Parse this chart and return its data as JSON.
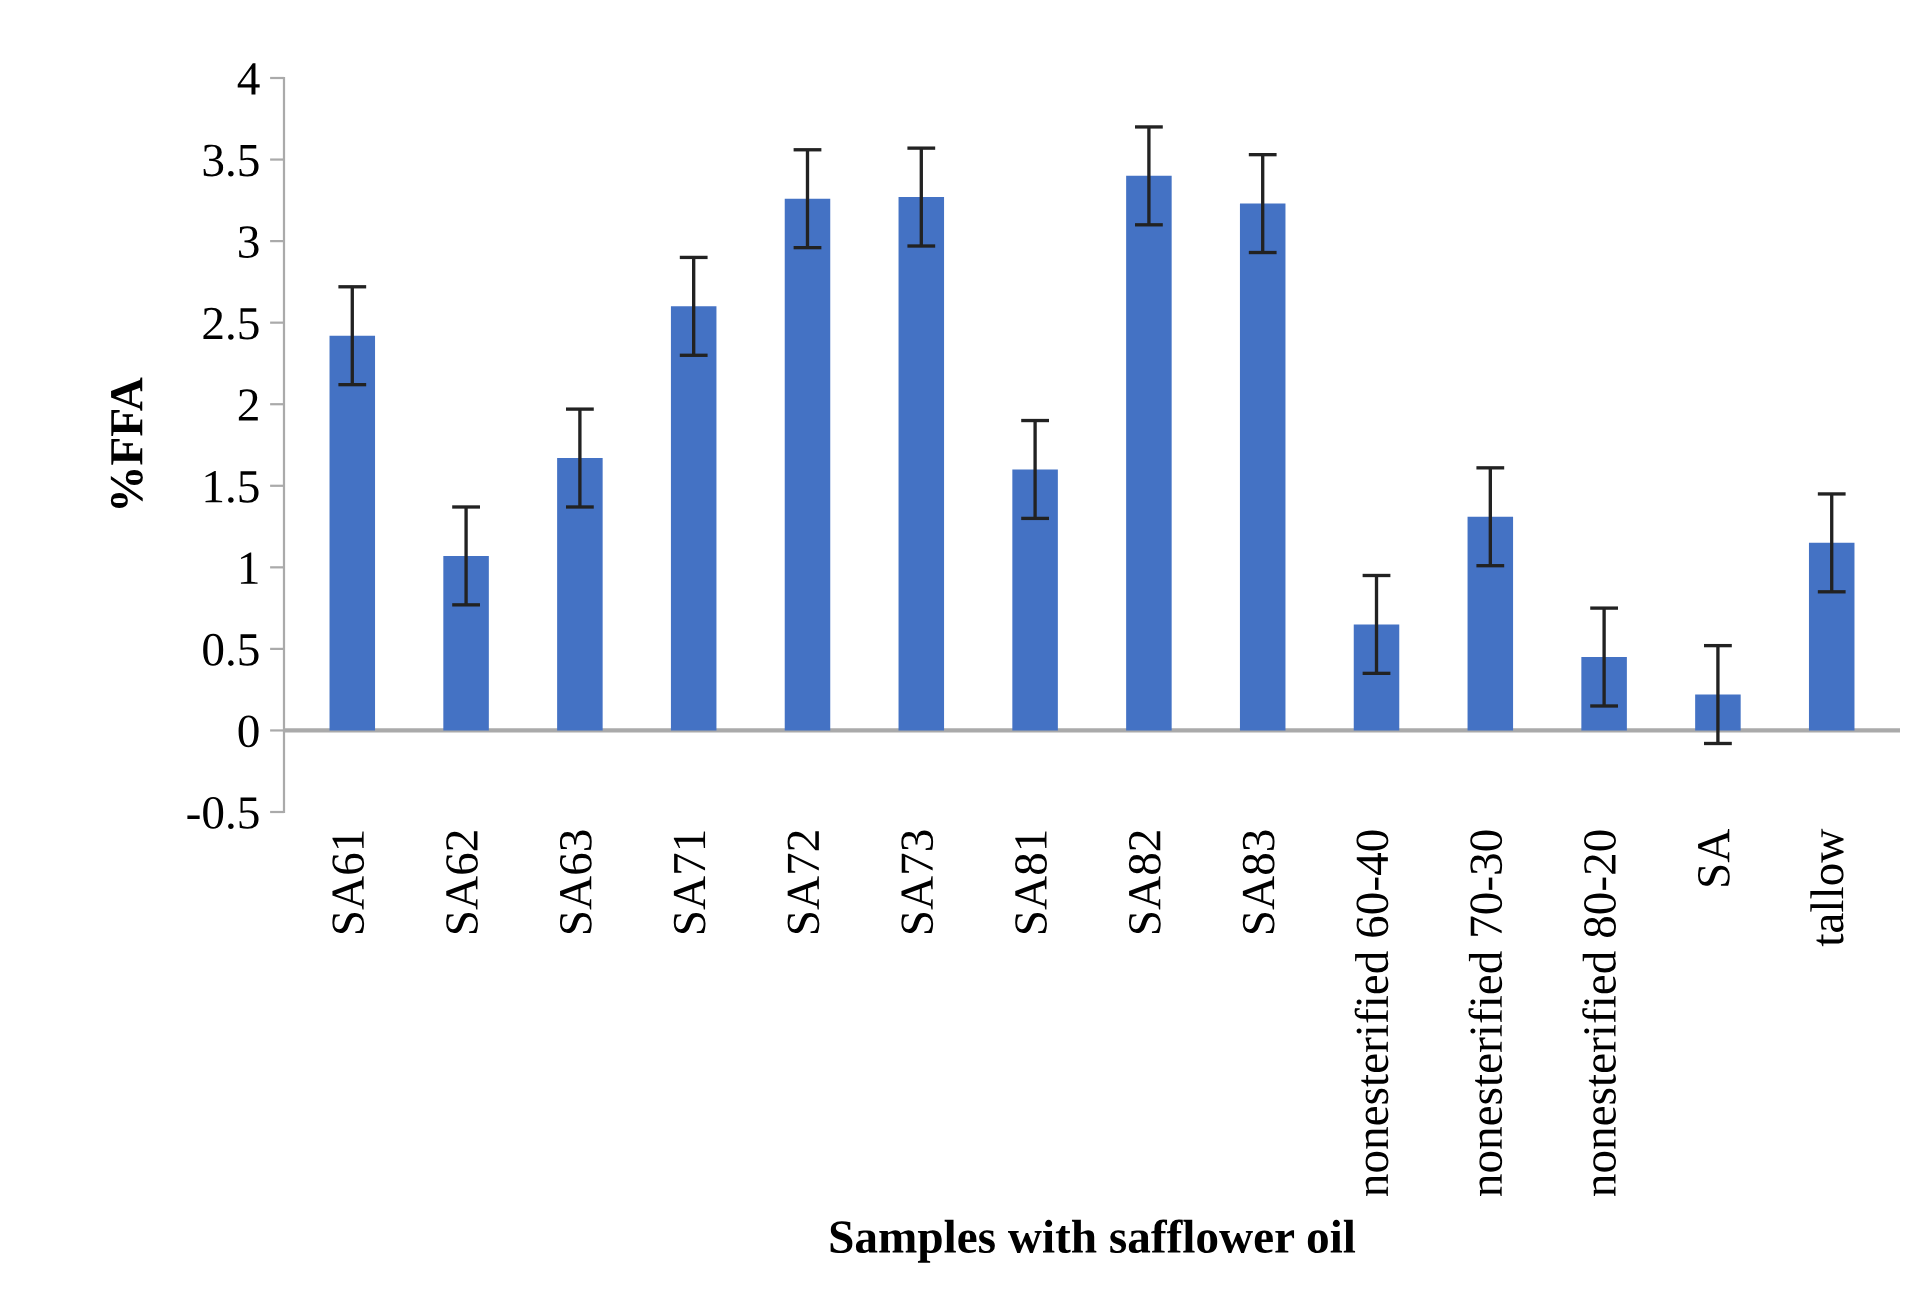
{
  "chart_data": {
    "type": "bar",
    "xlabel": "Samples with safflower oil",
    "ylabel": "%FFA",
    "categories": [
      "SA61",
      "SA62",
      "SA63",
      "SA71",
      "SA72",
      "SA73",
      "SA81",
      "SA82",
      "SA83",
      "nonesterified 60-40",
      "nonesterified 70-30",
      "nonesterified 80-20",
      "SA",
      "tallow"
    ],
    "values": [
      2.42,
      1.07,
      1.67,
      2.6,
      3.26,
      3.27,
      1.6,
      3.4,
      3.23,
      0.65,
      1.31,
      0.45,
      0.22,
      1.15
    ],
    "errors": [
      0.3,
      0.3,
      0.3,
      0.3,
      0.3,
      0.3,
      0.3,
      0.3,
      0.3,
      0.3,
      0.3,
      0.3,
      0.3,
      0.3
    ],
    "color": "#4472c4",
    "ylim": [
      -0.5,
      4
    ],
    "yticks": [
      -0.5,
      0,
      0.5,
      1,
      1.5,
      2,
      2.5,
      3,
      3.5,
      4
    ],
    "grid": false,
    "legend": false
  }
}
